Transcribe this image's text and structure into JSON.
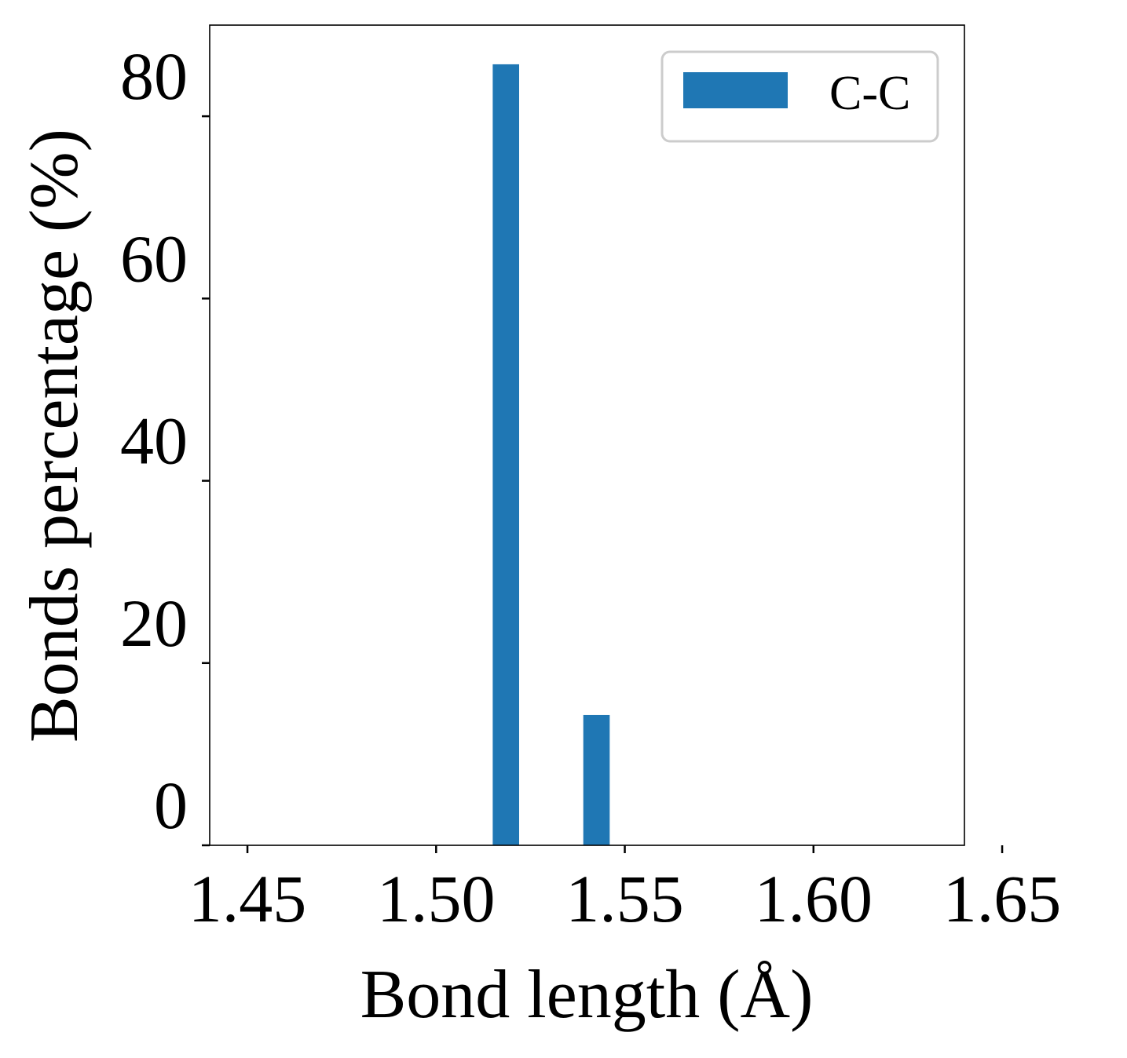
{
  "chart_data": {
    "type": "bar",
    "xlabel": "Bond length (Å)",
    "ylabel": "Bonds percentage (%)",
    "xlim": [
      1.44,
      1.64
    ],
    "ylim": [
      0,
      90
    ],
    "x_ticks": [
      1.45,
      1.5,
      1.55,
      1.6,
      1.65
    ],
    "x_tick_labels": [
      "1.45",
      "1.50",
      "1.55",
      "1.60",
      "1.65"
    ],
    "y_ticks": [
      0,
      20,
      40,
      60,
      80
    ],
    "y_tick_labels": [
      "0",
      "20",
      "40",
      "60",
      "80"
    ],
    "bar_width": 0.007,
    "series": [
      {
        "name": "C-C",
        "color": "#1f77b4",
        "x": [
          1.5185,
          1.5425
        ],
        "values": [
          85.7,
          14.3
        ]
      }
    ],
    "legend": {
      "position": "top-right",
      "entries": [
        "C-C"
      ]
    },
    "grid": false
  }
}
